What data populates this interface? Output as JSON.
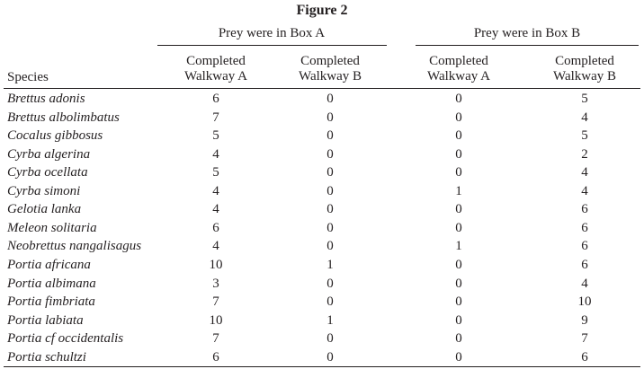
{
  "title": "Figure 2",
  "table": {
    "groups": [
      "Prey were in Box A",
      "Prey were in Box B"
    ],
    "columns": [
      "Species",
      "Completed Walkway A",
      "Completed Walkway B",
      "Completed Walkway A",
      "Completed Walkway B"
    ],
    "rows": [
      [
        "Brettus adonis",
        6,
        0,
        0,
        5
      ],
      [
        "Brettus albolimbatus",
        7,
        0,
        0,
        4
      ],
      [
        "Cocalus gibbosus",
        5,
        0,
        0,
        5
      ],
      [
        "Cyrba algerina",
        4,
        0,
        0,
        2
      ],
      [
        "Cyrba ocellata",
        5,
        0,
        0,
        4
      ],
      [
        "Cyrba simoni",
        4,
        0,
        1,
        4
      ],
      [
        "Gelotia lanka",
        4,
        0,
        0,
        6
      ],
      [
        "Meleon solitaria",
        6,
        0,
        0,
        6
      ],
      [
        "Neobrettus nangalisagus",
        4,
        0,
        1,
        6
      ],
      [
        "Portia africana",
        10,
        1,
        0,
        6
      ],
      [
        "Portia albimana",
        3,
        0,
        0,
        4
      ],
      [
        "Portia fimbriata",
        7,
        0,
        0,
        10
      ],
      [
        "Portia labiata",
        10,
        1,
        0,
        9
      ],
      [
        "Portia cf occidentalis",
        7,
        0,
        0,
        7
      ],
      [
        "Portia schultzi",
        6,
        0,
        0,
        6
      ]
    ]
  }
}
